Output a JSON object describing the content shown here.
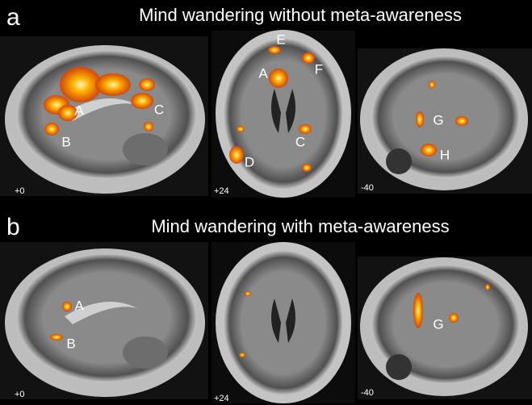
{
  "panels": [
    {
      "letter": "a",
      "title": "Mind wandering without meta-awareness",
      "slices": [
        {
          "coordinate": "+0",
          "labels": [
            "A",
            "B",
            "C"
          ]
        },
        {
          "coordinate": "+24",
          "labels": [
            "E",
            "A",
            "F",
            "C",
            "D"
          ]
        },
        {
          "coordinate": "-40",
          "labels": [
            "G",
            "H"
          ]
        }
      ]
    },
    {
      "letter": "b",
      "title": "Mind wandering with meta-awareness",
      "slices": [
        {
          "coordinate": "+0",
          "labels": [
            "A",
            "B"
          ]
        },
        {
          "coordinate": "+24"
        },
        {
          "coordinate": "-40",
          "labels": [
            "G"
          ]
        }
      ]
    }
  ]
}
